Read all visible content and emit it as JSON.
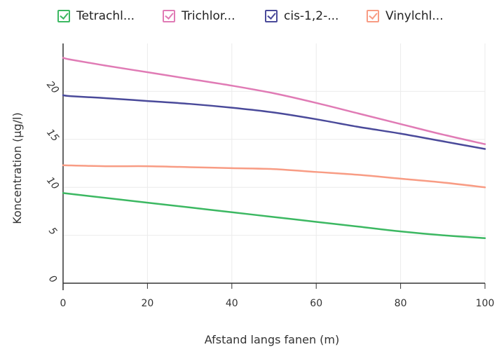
{
  "chart_data": {
    "type": "line",
    "title": "",
    "xlabel": "Afstand langs fanen (m)",
    "ylabel": "Koncentration (µg/l)",
    "xlim": [
      0,
      100
    ],
    "ylim": [
      0,
      25
    ],
    "xticks": [
      "0",
      "20",
      "40",
      "60",
      "80",
      "100"
    ],
    "yticks": [
      "0",
      "5",
      "10",
      "15",
      "20"
    ],
    "grid": true,
    "legend_position": "top",
    "series": [
      {
        "name": "Tetrachl...",
        "color": "#3cb862",
        "x": [
          0,
          10,
          20,
          30,
          40,
          50,
          60,
          70,
          80,
          90,
          100
        ],
        "y": [
          9.4,
          8.9,
          8.4,
          7.9,
          7.4,
          6.9,
          6.4,
          5.9,
          5.4,
          5.0,
          4.7
        ]
      },
      {
        "name": "Trichlor...",
        "color": "#e07bb5",
        "x": [
          0,
          2,
          10,
          20,
          30,
          40,
          50,
          60,
          70,
          80,
          90,
          100
        ],
        "y": [
          23.5,
          23.3,
          22.7,
          22.0,
          21.3,
          20.6,
          19.8,
          18.8,
          17.7,
          16.6,
          15.5,
          14.5
        ]
      },
      {
        "name": "cis-1,2-...",
        "color": "#4a4a9a",
        "x": [
          0,
          2,
          10,
          20,
          30,
          40,
          50,
          60,
          70,
          80,
          90,
          100
        ],
        "y": [
          19.6,
          19.5,
          19.3,
          19.0,
          18.7,
          18.3,
          17.8,
          17.1,
          16.3,
          15.6,
          14.8,
          14.0
        ]
      },
      {
        "name": "Vinylchl...",
        "color": "#f89c84",
        "x": [
          0,
          10,
          20,
          30,
          40,
          50,
          60,
          70,
          80,
          90,
          100
        ],
        "y": [
          12.3,
          12.2,
          12.2,
          12.1,
          12.0,
          11.9,
          11.6,
          11.3,
          10.9,
          10.5,
          10.0
        ]
      }
    ]
  }
}
